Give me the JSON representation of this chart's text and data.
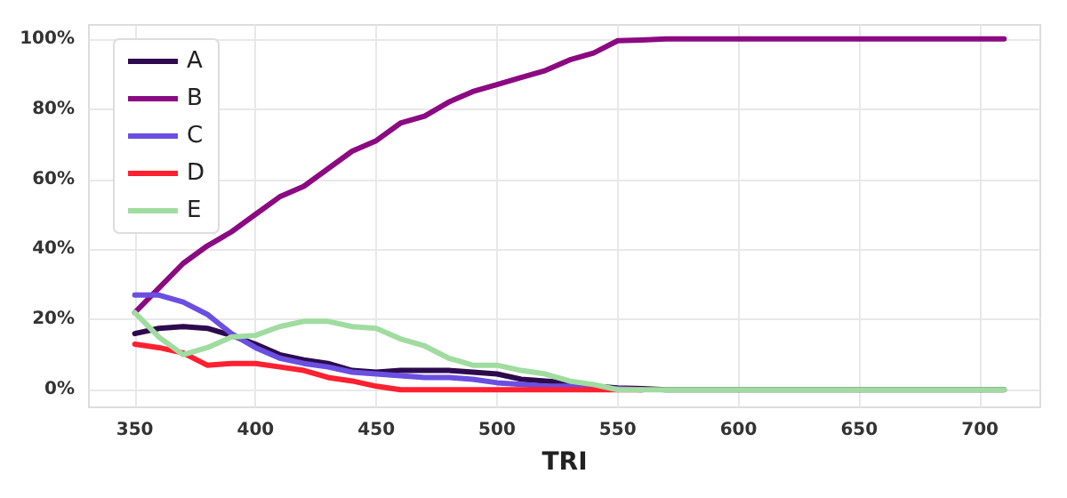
{
  "chart_data": {
    "type": "line",
    "xlabel": "TRI",
    "x": [
      350,
      360,
      370,
      380,
      390,
      400,
      410,
      420,
      430,
      440,
      450,
      460,
      470,
      480,
      490,
      500,
      510,
      520,
      530,
      540,
      550,
      560,
      570,
      580,
      590,
      600,
      610,
      620,
      630,
      640,
      650,
      660,
      670,
      680,
      690,
      700,
      710
    ],
    "series": [
      {
        "name": "A",
        "color": "#2d0a4e",
        "values": [
          16,
          17.5,
          18,
          17.5,
          15.5,
          13,
          10,
          8.5,
          7.5,
          5.5,
          5,
          5.5,
          5.5,
          5.5,
          5,
          4.5,
          3,
          2.5,
          2,
          1,
          0.5,
          0.3,
          0,
          0,
          0,
          0,
          0,
          0,
          0,
          0,
          0,
          0,
          0,
          0,
          0,
          0,
          0
        ]
      },
      {
        "name": "B",
        "color": "#8b0a82",
        "values": [
          22,
          29,
          36,
          41,
          45,
          50,
          55,
          58,
          63,
          68,
          71,
          76,
          78,
          82,
          85,
          87,
          89,
          91,
          94,
          96,
          99.5,
          99.7,
          100,
          100,
          100,
          100,
          100,
          100,
          100,
          100,
          100,
          100,
          100,
          100,
          100,
          100,
          100
        ]
      },
      {
        "name": "C",
        "color": "#6a4fe0",
        "values": [
          27,
          27,
          25,
          21.5,
          16,
          12,
          9,
          7.5,
          6.5,
          5,
          4.5,
          4,
          3.5,
          3.5,
          3,
          2,
          1.5,
          1,
          1,
          0.5,
          0.3,
          0,
          null,
          null,
          null,
          null,
          null,
          null,
          null,
          null,
          null,
          null,
          null,
          null,
          null,
          null,
          null
        ]
      },
      {
        "name": "D",
        "color": "#ff2030",
        "values": [
          13,
          12,
          10.5,
          7,
          7.5,
          7.5,
          6.5,
          5.5,
          3.5,
          2.5,
          1,
          0,
          0,
          0,
          0,
          0,
          0,
          0,
          0,
          0,
          0,
          0,
          null,
          null,
          null,
          null,
          null,
          null,
          null,
          null,
          null,
          null,
          null,
          null,
          null,
          null,
          null
        ]
      },
      {
        "name": "E",
        "color": "#a0dca0",
        "values": [
          22,
          15,
          10,
          12,
          15,
          15.5,
          18,
          19.5,
          19.5,
          18,
          17.5,
          14.5,
          12.5,
          9,
          7,
          7,
          5.5,
          4.5,
          2.5,
          1.5,
          0,
          0,
          0,
          0,
          0,
          0,
          0,
          0,
          0,
          0,
          0,
          0,
          0,
          0,
          0,
          0,
          0
        ]
      }
    ],
    "xlim": [
      331,
      725
    ],
    "xticks": [
      350,
      400,
      450,
      500,
      550,
      600,
      650,
      700
    ],
    "ylim": [
      -5,
      104
    ],
    "yticks": [
      {
        "value": 0,
        "label": "0%"
      },
      {
        "value": 20,
        "label": "20%"
      },
      {
        "value": 40,
        "label": "40%"
      },
      {
        "value": 60,
        "label": "60%"
      },
      {
        "value": 80,
        "label": "80%"
      },
      {
        "value": 100,
        "label": "100%"
      }
    ],
    "grid": true,
    "legend": "top left",
    "line_style": "solid"
  }
}
